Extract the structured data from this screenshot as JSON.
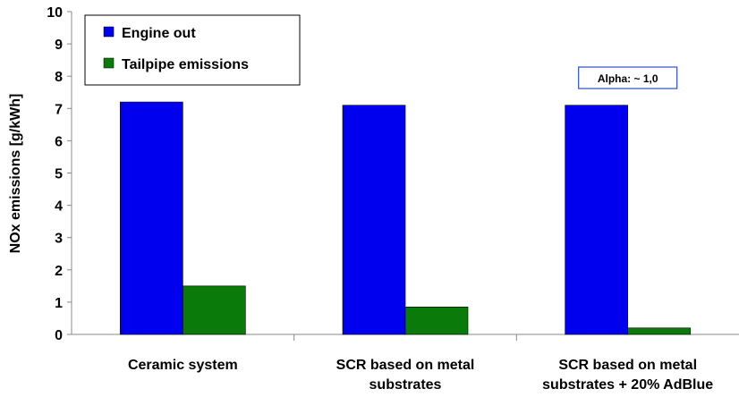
{
  "chart_data": {
    "type": "bar",
    "title": "",
    "xlabel": "",
    "ylabel": "NOx emissions [g/kWh]",
    "ylim": [
      0,
      10
    ],
    "yticks": [
      0,
      1,
      2,
      3,
      4,
      5,
      6,
      7,
      8,
      9,
      10
    ],
    "grid": false,
    "legend": "top-left",
    "categories": [
      [
        "Ceramic system"
      ],
      [
        "SCR based on metal",
        "substrates"
      ],
      [
        "SCR based on metal",
        "substrates + 20% AdBlue"
      ]
    ],
    "series": [
      {
        "name": "Engine out",
        "color": "#0000ee",
        "values": [
          7.2,
          7.1,
          7.1
        ]
      },
      {
        "name": "Tailpipe emissions",
        "color": "#0a7a0a",
        "values": [
          1.5,
          0.85,
          0.2
        ]
      }
    ],
    "annotations": [
      {
        "text": "Alpha: ~ 1,0",
        "category_index": 2
      }
    ]
  }
}
